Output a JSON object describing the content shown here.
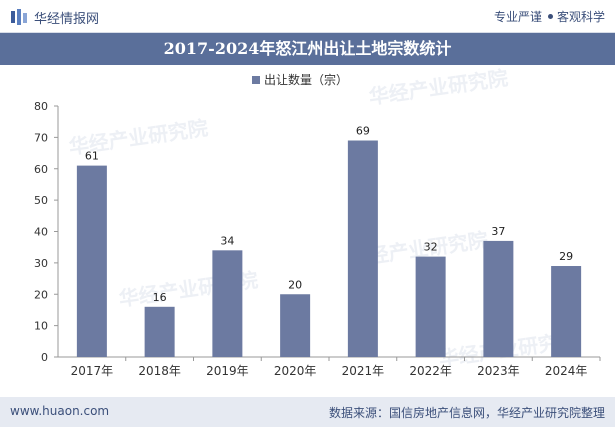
{
  "header": {
    "brand": "华经情报网",
    "slogan_left": "专业严谨",
    "slogan_right": "客观科学"
  },
  "title": "2017-2024年怒江州出让土地宗数统计",
  "footer": {
    "website": "www.huaon.com",
    "source": "数据来源：国信房地产信息网，华经产业研究院整理"
  },
  "watermark": "华经产业研究院",
  "colors": {
    "bar": "#6c7aa1",
    "title_bg": "#5a6f9a",
    "footer_bg": "#e6eaf2"
  },
  "chart_data": {
    "type": "bar",
    "legend": "出让数量（宗）",
    "categories": [
      "2017年",
      "2018年",
      "2019年",
      "2020年",
      "2021年",
      "2022年",
      "2023年",
      "2024年"
    ],
    "values": [
      61,
      16,
      34,
      20,
      69,
      32,
      37,
      29
    ],
    "ylim": [
      0,
      80
    ],
    "yticks": [
      0,
      10,
      20,
      30,
      40,
      50,
      60,
      70,
      80
    ],
    "xlabel": "",
    "ylabel": ""
  }
}
